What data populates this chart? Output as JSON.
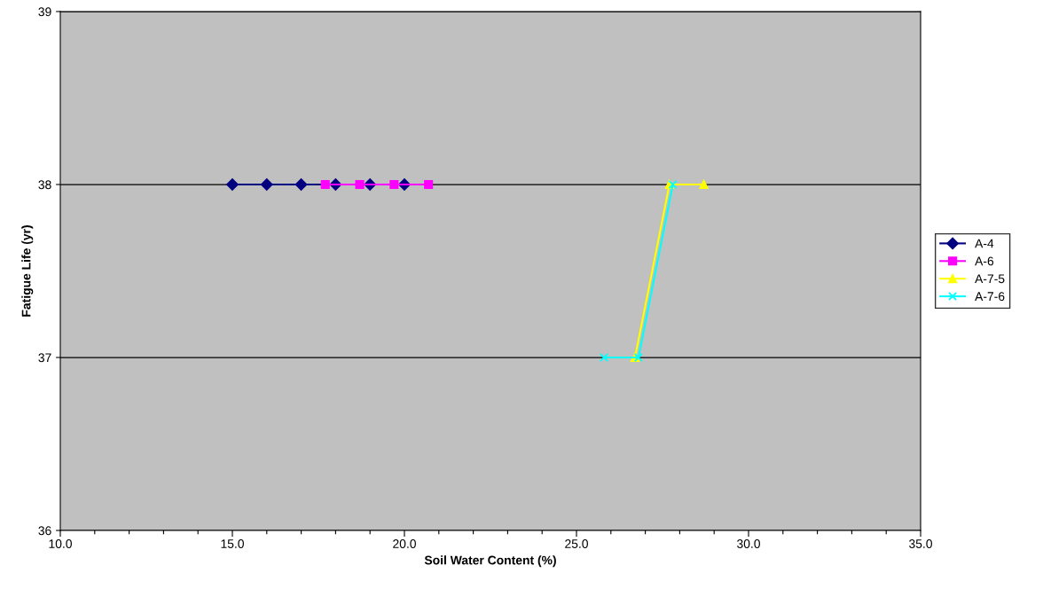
{
  "chart_data": {
    "type": "line",
    "xlabel": "Soil Water Content (%)",
    "ylabel": "Fatigue Life (yr)",
    "xlim": [
      10,
      35
    ],
    "ylim": [
      36,
      39
    ],
    "xticks": [
      {
        "value": 10,
        "label": "10.0"
      },
      {
        "value": 11,
        "label": null
      },
      {
        "value": 12,
        "label": null
      },
      {
        "value": 13,
        "label": null
      },
      {
        "value": 14,
        "label": null
      },
      {
        "value": 15,
        "label": "15.0"
      },
      {
        "value": 16,
        "label": null
      },
      {
        "value": 17,
        "label": null
      },
      {
        "value": 18,
        "label": null
      },
      {
        "value": 19,
        "label": null
      },
      {
        "value": 20,
        "label": "20.0"
      },
      {
        "value": 21,
        "label": null
      },
      {
        "value": 22,
        "label": null
      },
      {
        "value": 23,
        "label": null
      },
      {
        "value": 24,
        "label": null
      },
      {
        "value": 25,
        "label": "25.0"
      },
      {
        "value": 26,
        "label": null
      },
      {
        "value": 27,
        "label": null
      },
      {
        "value": 28,
        "label": null
      },
      {
        "value": 29,
        "label": null
      },
      {
        "value": 30,
        "label": "30.0"
      },
      {
        "value": 31,
        "label": null
      },
      {
        "value": 32,
        "label": null
      },
      {
        "value": 33,
        "label": null
      },
      {
        "value": 34,
        "label": null
      },
      {
        "value": 35,
        "label": "35.0"
      }
    ],
    "yticks": [
      36,
      37,
      38,
      39
    ],
    "grid": "y",
    "legend": "right",
    "series": [
      {
        "name": "A-4",
        "color": "#000080",
        "marker": "diamond",
        "x": [
          15,
          16,
          17,
          18,
          19,
          20
        ],
        "values": [
          38,
          38,
          38,
          38,
          38,
          38
        ]
      },
      {
        "name": "A-6",
        "color": "#ff00ff",
        "marker": "square",
        "x": [
          17.7,
          18.7,
          19.7,
          20.7
        ],
        "values": [
          38,
          38,
          38,
          38
        ]
      },
      {
        "name": "A-7-5",
        "color": "#ffff00",
        "marker": "triangle",
        "x": [
          26.7,
          27.7,
          28.7
        ],
        "values": [
          37,
          38,
          38
        ]
      },
      {
        "name": "A-7-6",
        "color": "#00ffff",
        "marker": "cross",
        "x": [
          25.8,
          26.8,
          27.8
        ],
        "values": [
          37,
          37,
          38
        ]
      }
    ]
  }
}
